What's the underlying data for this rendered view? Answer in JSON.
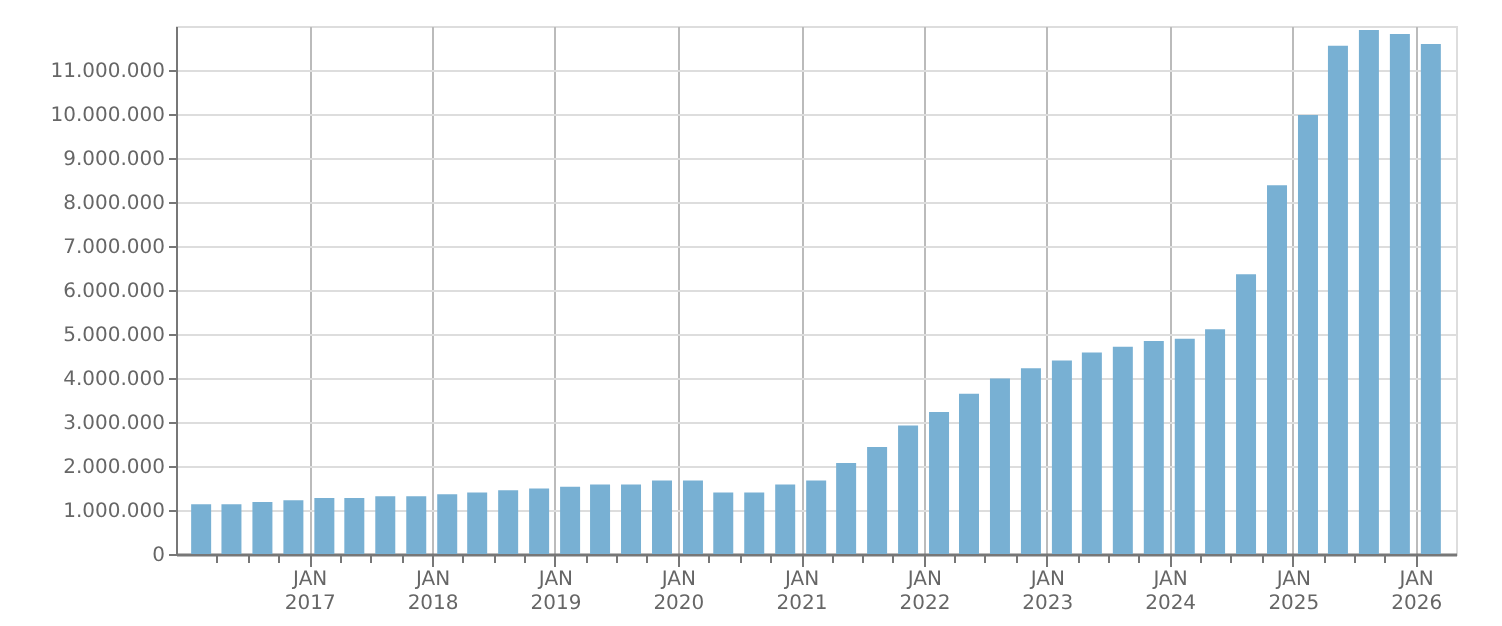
{
  "chart_data": {
    "type": "bar",
    "color": "#78b0d3",
    "x": [
      "2016-02-15",
      "2016-05-15",
      "2016-08-15",
      "2016-11-15",
      "2017-02-15",
      "2017-05-15",
      "2017-08-15",
      "2017-11-15",
      "2018-02-15",
      "2018-05-15",
      "2018-08-15",
      "2018-11-15",
      "2019-02-15",
      "2019-05-15",
      "2019-08-15",
      "2019-11-15",
      "2020-02-15",
      "2020-05-15",
      "2020-08-15",
      "2020-11-15",
      "2021-02-15",
      "2021-05-15",
      "2021-08-15",
      "2021-11-15",
      "2022-02-15",
      "2022-05-15",
      "2022-08-15",
      "2022-11-15",
      "2023-02-15",
      "2023-05-15",
      "2023-08-15",
      "2023-11-15",
      "2024-02-15",
      "2024-05-15",
      "2024-08-15",
      "2024-11-15",
      "2025-02-15",
      "2025-05-15",
      "2025-08-15",
      "2025-11-15",
      "2026-02-15"
    ],
    "values": [
      1130000,
      1130000,
      1180000,
      1220000,
      1270000,
      1270000,
      1310000,
      1310000,
      1360000,
      1400000,
      1450000,
      1490000,
      1530000,
      1580000,
      1580000,
      1670000,
      1670000,
      1400000,
      1400000,
      1580000,
      1670000,
      2070000,
      2430000,
      2920000,
      3230000,
      3640000,
      3990000,
      4220000,
      4400000,
      4580000,
      4710000,
      4840000,
      4890000,
      5110000,
      6360000,
      8380000,
      9980000,
      11550000,
      11910000,
      11820000,
      11590000
    ],
    "xlim": [
      "2016-01-01",
      "2026-04-01"
    ],
    "xticks": [
      {
        "value": "2016-04-01",
        "label": null
      },
      {
        "value": "2016-07-01",
        "label": null
      },
      {
        "value": "2016-10-01",
        "label": null
      },
      {
        "value": "2017-01-01",
        "label": "JAN\n2017"
      },
      {
        "value": "2017-04-01",
        "label": null
      },
      {
        "value": "2017-07-01",
        "label": null
      },
      {
        "value": "2017-10-01",
        "label": null
      },
      {
        "value": "2018-01-01",
        "label": "JAN\n2018"
      },
      {
        "value": "2018-04-01",
        "label": null
      },
      {
        "value": "2018-07-01",
        "label": null
      },
      {
        "value": "2018-10-01",
        "label": null
      },
      {
        "value": "2019-01-01",
        "label": "JAN\n2019"
      },
      {
        "value": "2019-04-01",
        "label": null
      },
      {
        "value": "2019-07-01",
        "label": null
      },
      {
        "value": "2019-10-01",
        "label": null
      },
      {
        "value": "2020-01-01",
        "label": "JAN\n2020"
      },
      {
        "value": "2020-04-01",
        "label": null
      },
      {
        "value": "2020-07-01",
        "label": null
      },
      {
        "value": "2020-10-01",
        "label": null
      },
      {
        "value": "2021-01-01",
        "label": "JAN\n2021"
      },
      {
        "value": "2021-04-01",
        "label": null
      },
      {
        "value": "2021-07-01",
        "label": null
      },
      {
        "value": "2021-10-01",
        "label": null
      },
      {
        "value": "2022-01-01",
        "label": "JAN\n2022"
      },
      {
        "value": "2022-04-01",
        "label": null
      },
      {
        "value": "2022-07-01",
        "label": null
      },
      {
        "value": "2022-10-01",
        "label": null
      },
      {
        "value": "2023-01-01",
        "label": "JAN\n2023"
      },
      {
        "value": "2023-04-01",
        "label": null
      },
      {
        "value": "2023-07-01",
        "label": null
      },
      {
        "value": "2023-10-01",
        "label": null
      },
      {
        "value": "2024-01-01",
        "label": "JAN\n2024"
      },
      {
        "value": "2024-04-01",
        "label": null
      },
      {
        "value": "2024-07-01",
        "label": null
      },
      {
        "value": "2024-10-01",
        "label": null
      },
      {
        "value": "2025-01-01",
        "label": "JAN\n2025"
      },
      {
        "value": "2025-04-01",
        "label": null
      },
      {
        "value": "2025-07-01",
        "label": null
      },
      {
        "value": "2025-10-01",
        "label": null
      },
      {
        "value": "2026-01-01",
        "label": "JAN\n2026"
      }
    ],
    "ylim": [
      0,
      12000000
    ],
    "yticks": [
      {
        "value": 0,
        "label": "0"
      },
      {
        "value": 1000000,
        "label": "1.000.000"
      },
      {
        "value": 2000000,
        "label": "2.000.000"
      },
      {
        "value": 3000000,
        "label": "3.000.000"
      },
      {
        "value": 4000000,
        "label": "4.000.000"
      },
      {
        "value": 5000000,
        "label": "5.000.000"
      },
      {
        "value": 6000000,
        "label": "6.000.000"
      },
      {
        "value": 7000000,
        "label": "7.000.000"
      },
      {
        "value": 8000000,
        "label": "8.000.000"
      },
      {
        "value": 9000000,
        "label": "9.000.000"
      },
      {
        "value": 10000000,
        "label": "10.000.000"
      },
      {
        "value": 11000000,
        "label": "11.000.000"
      }
    ],
    "grid": true
  }
}
